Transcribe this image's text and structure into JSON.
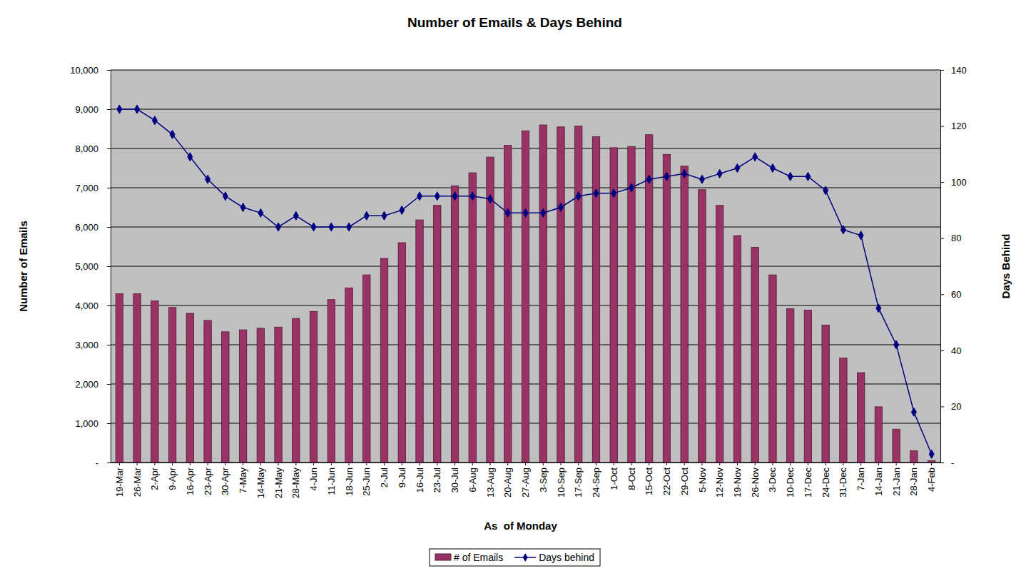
{
  "chart_data": {
    "type": "bar",
    "title": "Number of Emails & Days Behind",
    "x_label": "As  of Monday",
    "y_label": "Number of Emails",
    "y2_label": "Days Behind",
    "categories": [
      "19-Mar",
      "26-Mar",
      "2-Apr",
      "9-Apr",
      "16-Apr",
      "23-Apr",
      "30-Apr",
      "7-May",
      "14-May",
      "21-May",
      "28-May",
      "4-Jun",
      "11-Jun",
      "18-Jun",
      "25-Jun",
      "2-Jul",
      "9-Jul",
      "16-Jul",
      "23-Jul",
      "30-Jul",
      "6-Aug",
      "13-Aug",
      "20-Aug",
      "27-Aug",
      "3-Sep",
      "10-Sep",
      "17-Sep",
      "24-Sep",
      "1-Oct",
      "8-Oct",
      "15-Oct",
      "22-Oct",
      "29-Oct",
      "5-Nov",
      "12-Nov",
      "19-Nov",
      "26-Nov",
      "3-Dec",
      "10-Dec",
      "17-Dec",
      "24-Dec",
      "31-Dec",
      "7-Jan",
      "14-Jan",
      "21-Jan",
      "28-Jan",
      "4-Feb"
    ],
    "series": [
      {
        "name": "# of Emails",
        "type": "bar",
        "color": "#993366",
        "values": [
          4300,
          4300,
          4120,
          3950,
          3800,
          3620,
          3330,
          3380,
          3420,
          3450,
          3670,
          3850,
          4150,
          4450,
          4780,
          5200,
          5600,
          6180,
          6550,
          7050,
          7380,
          7780,
          8080,
          8450,
          8600,
          8550,
          8570,
          8300,
          8020,
          8050,
          8350,
          7850,
          7550,
          6950,
          6550,
          5780,
          5480,
          4780,
          3920,
          3880,
          3500,
          2660,
          2290,
          1420,
          850,
          300,
          50
        ]
      },
      {
        "name": "Days behind",
        "type": "line",
        "axis": "y2",
        "color": "#000080",
        "marker": "diamond",
        "line_style": "solid",
        "values": [
          126,
          126,
          122,
          117,
          109,
          101,
          95,
          91,
          89,
          84,
          88,
          84,
          84,
          84,
          88,
          88,
          90,
          95,
          95,
          95,
          95,
          94,
          89,
          89,
          89,
          91,
          95,
          96,
          96,
          98,
          101,
          102,
          103,
          101,
          103,
          105,
          109,
          105,
          102,
          102,
          97,
          83,
          81,
          55,
          42,
          18,
          3
        ]
      }
    ],
    "ylim": [
      0,
      10000
    ],
    "yticks": [
      {
        "value": 0,
        "label": "-"
      },
      {
        "value": 1000,
        "label": "1,000"
      },
      {
        "value": 2000,
        "label": "2,000"
      },
      {
        "value": 3000,
        "label": "3,000"
      },
      {
        "value": 4000,
        "label": "4,000"
      },
      {
        "value": 5000,
        "label": "5,000"
      },
      {
        "value": 6000,
        "label": "6,000"
      },
      {
        "value": 7000,
        "label": "7,000"
      },
      {
        "value": 8000,
        "label": "8,000"
      },
      {
        "value": 9000,
        "label": "9,000"
      },
      {
        "value": 10000,
        "label": "10,000"
      }
    ],
    "y2lim": [
      0,
      140
    ],
    "y2ticks": [
      {
        "value": 0,
        "label": "-"
      },
      20,
      40,
      60,
      80,
      100,
      120,
      140
    ],
    "grid": true,
    "legend": "bottom"
  }
}
